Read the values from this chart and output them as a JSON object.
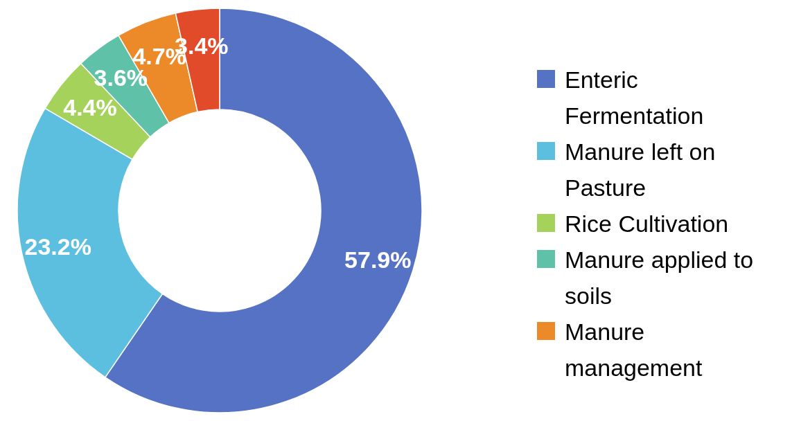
{
  "chart_data": {
    "type": "donut",
    "categories": [
      "Enteric Fermentation",
      "Manure left on Pasture",
      "Rice Cultivation",
      "Manure applied to soils",
      "Manure management",
      null
    ],
    "values": [
      57.9,
      23.2,
      4.4,
      3.6,
      4.7,
      3.4
    ],
    "colors": [
      "#5672c4",
      "#5dbfe0",
      "#a5d25a",
      "#5fc2a8",
      "#ec8a2a",
      "#e14b2a"
    ],
    "value_labels": [
      "57.9%",
      "23.2%",
      "4.4%",
      "3.6%",
      "4.7%",
      "3.4%"
    ],
    "legend": "right"
  }
}
